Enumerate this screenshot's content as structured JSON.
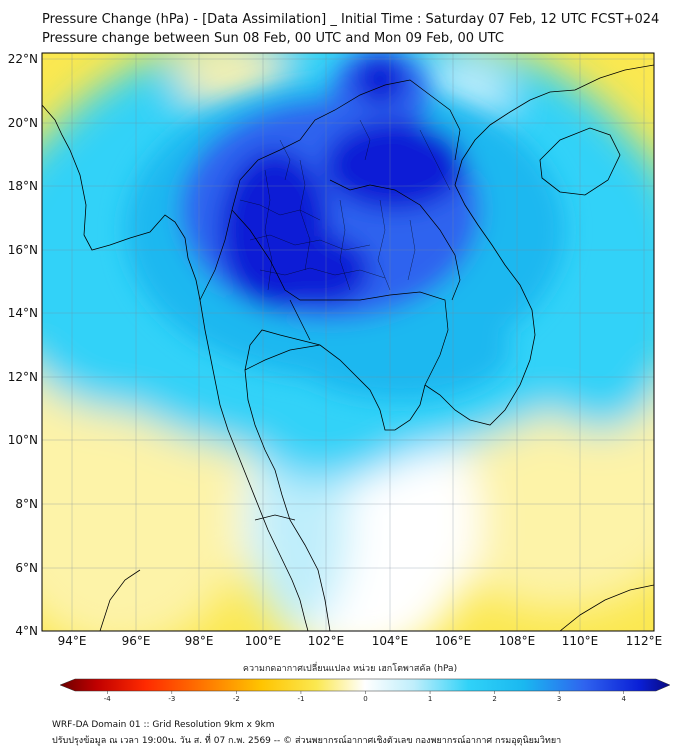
{
  "title_line1": "Pressure Change (hPa) - [Data Assimilation] _ Initial Time : Saturday 07 Feb, 12 UTC FCST+024",
  "title_line2": "Pressure change between Sun 08 Feb, 00 UTC and Mon 09 Feb, 00 UTC",
  "lat_labels": [
    "22°N",
    "20°N",
    "18°N",
    "16°N",
    "14°N",
    "12°N",
    "10°N",
    "8°N",
    "6°N",
    "4°N"
  ],
  "lon_labels": [
    "94°E",
    "96°E",
    "98°E",
    "100°E",
    "102°E",
    "104°E",
    "106°E",
    "108°E",
    "110°E",
    "112°E"
  ],
  "colorbar": {
    "title": "ความกดอากาศเปลี่ยนแปลง หน่วย เฮกโตพาสคัล (hPa)",
    "ticks": [
      "-4",
      "-3",
      "-2",
      "-1",
      "0",
      "1",
      "2",
      "3",
      "4"
    ],
    "min": -4.5,
    "max": 4.5,
    "tick_values": [
      -4,
      -3,
      -2,
      -1,
      0,
      1,
      2,
      3,
      4
    ]
  },
  "colors": {
    "deep_blue": "#0a1fd6",
    "mid_blue": "#2f63ef",
    "light_blue": "#1ab8f0",
    "cyan": "#30d2f8",
    "pale_cyan": "#bfeefb",
    "white": "#ffffff",
    "pale_yellow": "#fdf3a8",
    "yellow": "#fbe850",
    "dark_red": "#7a0000"
  },
  "footer_line1": "WRF-DA Domain 01 :: Grid Resolution 9km x 9km",
  "footer_line2": "ปรับปรุงข้อมูล ณ เวลา 19:00น. วัน ส. ที่ 07 ก.พ. 2569 -- © ส่วนพยากรณ์อากาศเชิงตัวเลข กองพยากรณ์อากาศ กรมอุตุนิยมวิทยา"
}
